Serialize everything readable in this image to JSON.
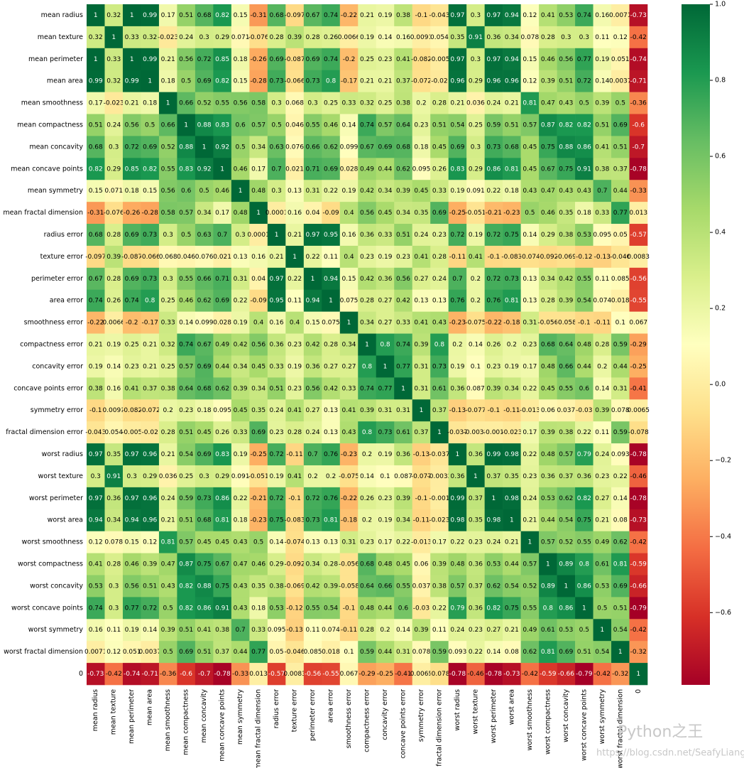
{
  "chart_data": {
    "type": "heatmap",
    "x": [
      "mean radius",
      "mean texture",
      "mean perimeter",
      "mean area",
      "mean smoothness",
      "mean compactness",
      "mean concavity",
      "mean concave points",
      "mean symmetry",
      "mean fractal dimension",
      "radius error",
      "texture error",
      "perimeter error",
      "area error",
      "smoothness error",
      "compactness error",
      "concavity error",
      "concave points error",
      "symmetry error",
      "fractal dimension error",
      "worst radius",
      "worst texture",
      "worst perimeter",
      "worst area",
      "worst smoothness",
      "worst compactness",
      "worst concavity",
      "worst concave points",
      "worst symmetry",
      "worst fractal dimension",
      "0"
    ],
    "y": [
      "mean radius",
      "mean texture",
      "mean perimeter",
      "mean area",
      "mean smoothness",
      "mean compactness",
      "mean concavity",
      "mean concave points",
      "mean symmetry",
      "mean fractal dimension",
      "radius error",
      "texture error",
      "perimeter error",
      "area error",
      "smoothness error",
      "compactness error",
      "concavity error",
      "concave points error",
      "symmetry error",
      "fractal dimension error",
      "worst radius",
      "worst texture",
      "worst perimeter",
      "worst area",
      "worst smoothness",
      "worst compactness",
      "worst concavity",
      "worst concave points",
      "worst symmetry",
      "worst fractal dimension",
      "0"
    ],
    "z": [
      [
        1,
        0.32,
        1,
        0.99,
        0.17,
        0.51,
        0.68,
        0.82,
        0.15,
        -0.31,
        0.68,
        -0.097,
        0.67,
        0.74,
        -0.22,
        0.21,
        0.19,
        0.38,
        -0.1,
        -0.043,
        0.97,
        0.3,
        0.97,
        0.94,
        0.12,
        0.41,
        0.53,
        0.74,
        0.16,
        0.0071,
        -0.73
      ],
      [
        0.32,
        1,
        0.33,
        0.32,
        -0.023,
        0.24,
        0.3,
        0.29,
        0.071,
        -0.076,
        0.28,
        0.39,
        0.28,
        0.26,
        0.0066,
        0.19,
        0.14,
        0.16,
        0.0091,
        0.054,
        0.35,
        0.91,
        0.36,
        0.34,
        0.078,
        0.28,
        0.3,
        0.3,
        0.11,
        0.12,
        -0.42
      ],
      [
        1,
        0.33,
        1,
        0.99,
        0.21,
        0.56,
        0.72,
        0.85,
        0.18,
        -0.26,
        0.69,
        -0.087,
        0.69,
        0.74,
        -0.2,
        0.25,
        0.23,
        0.41,
        -0.082,
        -0.005,
        0.97,
        0.3,
        0.97,
        0.94,
        0.15,
        0.46,
        0.56,
        0.77,
        0.19,
        0.051,
        -0.74
      ],
      [
        0.99,
        0.32,
        0.99,
        1,
        0.18,
        0.5,
        0.69,
        0.82,
        0.15,
        -0.28,
        0.73,
        -0.066,
        0.73,
        0.8,
        -0.17,
        0.21,
        0.21,
        0.37,
        -0.072,
        -0.02,
        0.96,
        0.29,
        0.96,
        0.96,
        0.12,
        0.39,
        0.51,
        0.72,
        0.14,
        0.0037,
        -0.71
      ],
      [
        0.17,
        -0.023,
        0.21,
        0.18,
        1,
        0.66,
        0.52,
        0.55,
        0.56,
        0.58,
        0.3,
        0.068,
        0.3,
        0.25,
        0.33,
        0.32,
        0.25,
        0.38,
        0.2,
        0.28,
        0.21,
        0.036,
        0.24,
        0.21,
        0.81,
        0.47,
        0.43,
        0.5,
        0.39,
        0.5,
        -0.36
      ],
      [
        0.51,
        0.24,
        0.56,
        0.5,
        0.66,
        1,
        0.88,
        0.83,
        0.6,
        0.57,
        0.5,
        0.046,
        0.55,
        0.46,
        0.14,
        0.74,
        0.57,
        0.64,
        0.23,
        0.51,
        0.54,
        0.25,
        0.59,
        0.51,
        0.57,
        0.87,
        0.82,
        0.82,
        0.51,
        0.69,
        -0.6
      ],
      [
        0.68,
        0.3,
        0.72,
        0.69,
        0.52,
        0.88,
        1,
        0.92,
        0.5,
        0.34,
        0.63,
        0.076,
        0.66,
        0.62,
        0.099,
        0.67,
        0.69,
        0.68,
        0.18,
        0.45,
        0.69,
        0.3,
        0.73,
        0.68,
        0.45,
        0.75,
        0.88,
        0.86,
        0.41,
        0.51,
        -0.7
      ],
      [
        0.82,
        0.29,
        0.85,
        0.82,
        0.55,
        0.83,
        0.92,
        1,
        0.46,
        0.17,
        0.7,
        0.021,
        0.71,
        0.69,
        0.028,
        0.49,
        0.44,
        0.62,
        0.095,
        0.26,
        0.83,
        0.29,
        0.86,
        0.81,
        0.45,
        0.67,
        0.75,
        0.91,
        0.38,
        0.37,
        -0.78
      ],
      [
        0.15,
        0.071,
        0.18,
        0.15,
        0.56,
        0.6,
        0.5,
        0.46,
        1,
        0.48,
        0.3,
        0.13,
        0.31,
        0.22,
        0.19,
        0.42,
        0.34,
        0.39,
        0.45,
        0.33,
        0.19,
        0.091,
        0.22,
        0.18,
        0.43,
        0.47,
        0.43,
        0.43,
        0.7,
        0.44,
        -0.33
      ],
      [
        -0.31,
        -0.076,
        -0.26,
        -0.28,
        0.58,
        0.57,
        0.34,
        0.17,
        0.48,
        1,
        0.0001,
        0.16,
        0.04,
        -0.09,
        0.4,
        0.56,
        0.45,
        0.34,
        0.35,
        0.69,
        -0.25,
        -0.051,
        -0.21,
        -0.23,
        0.5,
        0.46,
        0.35,
        0.18,
        0.33,
        0.77,
        0.013
      ],
      [
        0.68,
        0.28,
        0.69,
        0.73,
        0.3,
        0.5,
        0.63,
        0.7,
        0.3,
        0.0001,
        1,
        0.21,
        0.97,
        0.95,
        0.16,
        0.36,
        0.33,
        0.51,
        0.24,
        0.23,
        0.72,
        0.19,
        0.72,
        0.75,
        0.14,
        0.29,
        0.38,
        0.53,
        0.095,
        0.05,
        -0.57
      ],
      [
        -0.097,
        0.39,
        -0.087,
        -0.066,
        0.068,
        0.046,
        0.076,
        0.021,
        0.13,
        0.16,
        0.21,
        1,
        0.22,
        0.11,
        0.4,
        0.23,
        0.19,
        0.23,
        0.41,
        0.28,
        -0.11,
        0.41,
        -0.1,
        -0.083,
        -0.074,
        -0.092,
        -0.069,
        -0.12,
        -0.13,
        -0.046,
        0.0083
      ],
      [
        0.67,
        0.28,
        0.69,
        0.73,
        0.3,
        0.55,
        0.66,
        0.71,
        0.31,
        0.04,
        0.97,
        0.22,
        1,
        0.94,
        0.15,
        0.42,
        0.36,
        0.56,
        0.27,
        0.24,
        0.7,
        0.2,
        0.72,
        0.73,
        0.13,
        0.34,
        0.42,
        0.55,
        0.11,
        0.085,
        -0.56
      ],
      [
        0.74,
        0.26,
        0.74,
        0.8,
        0.25,
        0.46,
        0.62,
        0.69,
        0.22,
        -0.09,
        0.95,
        0.11,
        0.94,
        1,
        0.075,
        0.28,
        0.27,
        0.42,
        0.13,
        0.13,
        0.76,
        0.2,
        0.76,
        0.81,
        0.13,
        0.28,
        0.39,
        0.54,
        0.074,
        0.018,
        -0.55
      ],
      [
        -0.22,
        0.0066,
        -0.2,
        -0.17,
        0.33,
        0.14,
        0.099,
        0.028,
        0.19,
        0.4,
        0.16,
        0.4,
        0.15,
        0.075,
        1,
        0.34,
        0.27,
        0.33,
        0.41,
        0.43,
        -0.23,
        -0.075,
        -0.22,
        -0.18,
        0.31,
        -0.056,
        -0.058,
        -0.1,
        -0.11,
        0.1,
        0.067
      ],
      [
        0.21,
        0.19,
        0.25,
        0.21,
        0.32,
        0.74,
        0.67,
        0.49,
        0.42,
        0.56,
        0.36,
        0.23,
        0.42,
        0.28,
        0.34,
        1,
        0.8,
        0.74,
        0.39,
        0.8,
        0.2,
        0.14,
        0.26,
        0.2,
        0.23,
        0.68,
        0.64,
        0.48,
        0.28,
        0.59,
        -0.29
      ],
      [
        0.19,
        0.14,
        0.23,
        0.21,
        0.25,
        0.57,
        0.69,
        0.44,
        0.34,
        0.45,
        0.33,
        0.19,
        0.36,
        0.27,
        0.27,
        0.8,
        1,
        0.77,
        0.31,
        0.73,
        0.19,
        0.1,
        0.23,
        0.19,
        0.17,
        0.48,
        0.66,
        0.44,
        0.2,
        0.44,
        -0.25
      ],
      [
        0.38,
        0.16,
        0.41,
        0.37,
        0.38,
        0.64,
        0.68,
        0.62,
        0.39,
        0.34,
        0.51,
        0.23,
        0.56,
        0.42,
        0.33,
        0.74,
        0.77,
        1,
        0.31,
        0.61,
        0.36,
        0.087,
        0.39,
        0.34,
        0.22,
        0.45,
        0.55,
        0.6,
        0.14,
        0.31,
        -0.41
      ],
      [
        -0.1,
        0.0091,
        -0.082,
        -0.072,
        0.2,
        0.23,
        0.18,
        0.095,
        0.45,
        0.35,
        0.24,
        0.41,
        0.27,
        0.13,
        0.41,
        0.39,
        0.31,
        0.31,
        1,
        0.37,
        -0.13,
        -0.077,
        -0.1,
        -0.11,
        -0.013,
        0.06,
        0.037,
        -0.03,
        0.39,
        0.078,
        0.0065
      ],
      [
        -0.043,
        0.054,
        -0.005,
        -0.02,
        0.28,
        0.51,
        0.45,
        0.26,
        0.33,
        0.69,
        0.23,
        0.28,
        0.24,
        0.13,
        0.43,
        0.8,
        0.73,
        0.61,
        0.37,
        1,
        -0.037,
        -0.0032,
        -0.001,
        -0.023,
        0.17,
        0.39,
        0.38,
        0.22,
        0.11,
        0.59,
        -0.078
      ],
      [
        0.97,
        0.35,
        0.97,
        0.96,
        0.21,
        0.54,
        0.69,
        0.83,
        0.19,
        -0.25,
        0.72,
        -0.11,
        0.7,
        0.76,
        -0.23,
        0.2,
        0.19,
        0.36,
        -0.13,
        -0.037,
        1,
        0.36,
        0.99,
        0.98,
        0.22,
        0.48,
        0.57,
        0.79,
        0.24,
        0.093,
        -0.78
      ],
      [
        0.3,
        0.91,
        0.3,
        0.29,
        0.036,
        0.25,
        0.3,
        0.29,
        0.091,
        -0.051,
        0.19,
        0.41,
        0.2,
        0.2,
        -0.075,
        0.14,
        0.1,
        0.087,
        -0.077,
        -0.0032,
        0.36,
        1,
        0.37,
        0.35,
        0.23,
        0.36,
        0.37,
        0.36,
        0.23,
        0.22,
        -0.46
      ],
      [
        0.97,
        0.36,
        0.97,
        0.96,
        0.24,
        0.59,
        0.73,
        0.86,
        0.22,
        -0.21,
        0.72,
        -0.1,
        0.72,
        0.76,
        -0.22,
        0.26,
        0.23,
        0.39,
        -0.1,
        -0.001,
        0.99,
        0.37,
        1,
        0.98,
        0.24,
        0.53,
        0.62,
        0.82,
        0.27,
        0.14,
        -0.78
      ],
      [
        0.94,
        0.34,
        0.94,
        0.96,
        0.21,
        0.51,
        0.68,
        0.81,
        0.18,
        -0.23,
        0.75,
        -0.083,
        0.73,
        0.81,
        -0.18,
        0.2,
        0.19,
        0.34,
        -0.11,
        -0.023,
        0.98,
        0.35,
        0.98,
        1,
        0.21,
        0.44,
        0.54,
        0.75,
        0.21,
        0.08,
        -0.73
      ],
      [
        0.12,
        0.078,
        0.15,
        0.12,
        0.81,
        0.57,
        0.45,
        0.45,
        0.43,
        0.5,
        0.14,
        -0.074,
        0.13,
        0.13,
        0.31,
        0.23,
        0.17,
        0.22,
        -0.013,
        0.17,
        0.22,
        0.23,
        0.24,
        0.21,
        1,
        0.57,
        0.52,
        0.55,
        0.49,
        0.62,
        -0.42
      ],
      [
        0.41,
        0.28,
        0.46,
        0.39,
        0.47,
        0.87,
        0.75,
        0.67,
        0.47,
        0.46,
        0.29,
        -0.092,
        0.34,
        0.28,
        -0.056,
        0.68,
        0.48,
        0.45,
        0.06,
        0.39,
        0.48,
        0.36,
        0.53,
        0.44,
        0.57,
        1,
        0.89,
        0.8,
        0.61,
        0.81,
        -0.59
      ],
      [
        0.53,
        0.3,
        0.56,
        0.51,
        0.43,
        0.82,
        0.88,
        0.75,
        0.43,
        0.35,
        0.38,
        -0.069,
        0.42,
        0.39,
        -0.058,
        0.64,
        0.66,
        0.55,
        0.037,
        0.38,
        0.57,
        0.37,
        0.62,
        0.54,
        0.52,
        0.89,
        1,
        0.86,
        0.53,
        0.69,
        -0.66
      ],
      [
        0.74,
        0.3,
        0.77,
        0.72,
        0.5,
        0.82,
        0.86,
        0.91,
        0.43,
        0.18,
        0.53,
        -0.12,
        0.55,
        0.54,
        -0.1,
        0.48,
        0.44,
        0.6,
        -0.03,
        0.22,
        0.79,
        0.36,
        0.82,
        0.75,
        0.55,
        0.8,
        0.86,
        1,
        0.5,
        0.51,
        -0.79
      ],
      [
        0.16,
        0.11,
        0.19,
        0.14,
        0.39,
        0.51,
        0.41,
        0.38,
        0.7,
        0.33,
        0.095,
        -0.13,
        0.11,
        0.074,
        -0.11,
        0.28,
        0.2,
        0.14,
        0.39,
        0.11,
        0.24,
        0.23,
        0.27,
        0.21,
        0.49,
        0.61,
        0.53,
        0.5,
        1,
        0.54,
        -0.42
      ],
      [
        0.0071,
        0.12,
        0.051,
        0.0037,
        0.5,
        0.69,
        0.51,
        0.37,
        0.44,
        0.77,
        0.05,
        -0.046,
        0.085,
        0.018,
        0.1,
        0.59,
        0.44,
        0.31,
        0.078,
        0.59,
        0.093,
        0.22,
        0.14,
        0.08,
        0.62,
        0.81,
        0.69,
        0.51,
        0.54,
        1,
        -0.32
      ],
      [
        -0.73,
        -0.42,
        -0.74,
        -0.71,
        -0.36,
        -0.6,
        -0.7,
        -0.78,
        -0.33,
        0.013,
        -0.57,
        0.0083,
        -0.56,
        -0.55,
        0.067,
        -0.29,
        -0.25,
        -0.41,
        0.0065,
        -0.078,
        -0.78,
        -0.46,
        -0.78,
        -0.73,
        -0.42,
        -0.59,
        -0.66,
        -0.79,
        -0.42,
        -0.32,
        1
      ]
    ],
    "colormap": [
      "#a50026",
      "#d73027",
      "#f46d43",
      "#fdae61",
      "#fee08b",
      "#ffffbf",
      "#d9ef8b",
      "#a6d96a",
      "#66bd63",
      "#1a9850",
      "#006837"
    ],
    "clim": [
      -0.79,
      1
    ],
    "cticks": [
      {
        "value": -0.6,
        "label": "−0.6"
      },
      {
        "value": -0.4,
        "label": "−0.4"
      },
      {
        "value": -0.2,
        "label": "−0.2"
      },
      {
        "value": 0,
        "label": "0.0"
      },
      0.2,
      0.4,
      0.6,
      0.8,
      {
        "value": 1,
        "label": "1.0"
      }
    ],
    "watermark": [
      "Python之王",
      "https://blog.csdn.net/SeafyLiang"
    ]
  }
}
